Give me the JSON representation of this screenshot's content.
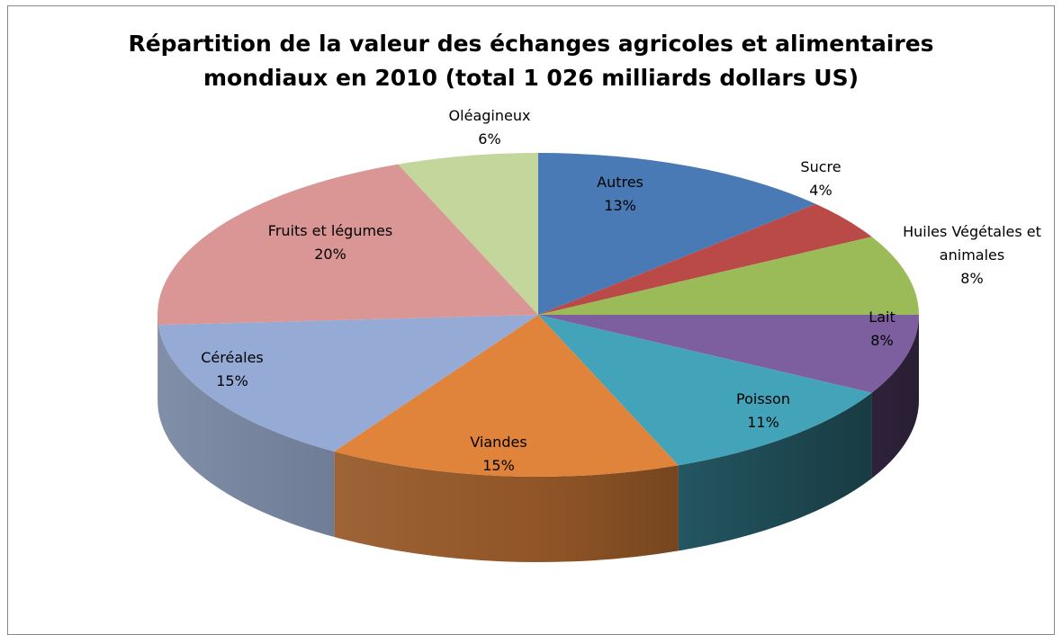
{
  "chart_data": {
    "type": "pie",
    "title": "Répartition de la valeur des échanges agricoles et alimentaires mondiaux en 2010 (total 1 026 milliards dollars US)",
    "categories": [
      "Autres",
      "Sucre",
      "Huiles Végétales et animales",
      "Lait",
      "Poisson",
      "Viandes",
      "Céréales",
      "Fruits et légumes",
      "Oléagineux"
    ],
    "values": [
      13,
      4,
      8,
      8,
      11,
      15,
      15,
      20,
      6
    ],
    "value_labels": [
      "13%",
      "4%",
      "8%",
      "8%",
      "11%",
      "15%",
      "15%",
      "20%",
      "6%"
    ],
    "colors": [
      "#4a7ab5",
      "#b94a48",
      "#9bbb59",
      "#7d5f9f",
      "#43a3b8",
      "#e0843c",
      "#95abd5",
      "#d99694",
      "#c3d69b"
    ]
  }
}
